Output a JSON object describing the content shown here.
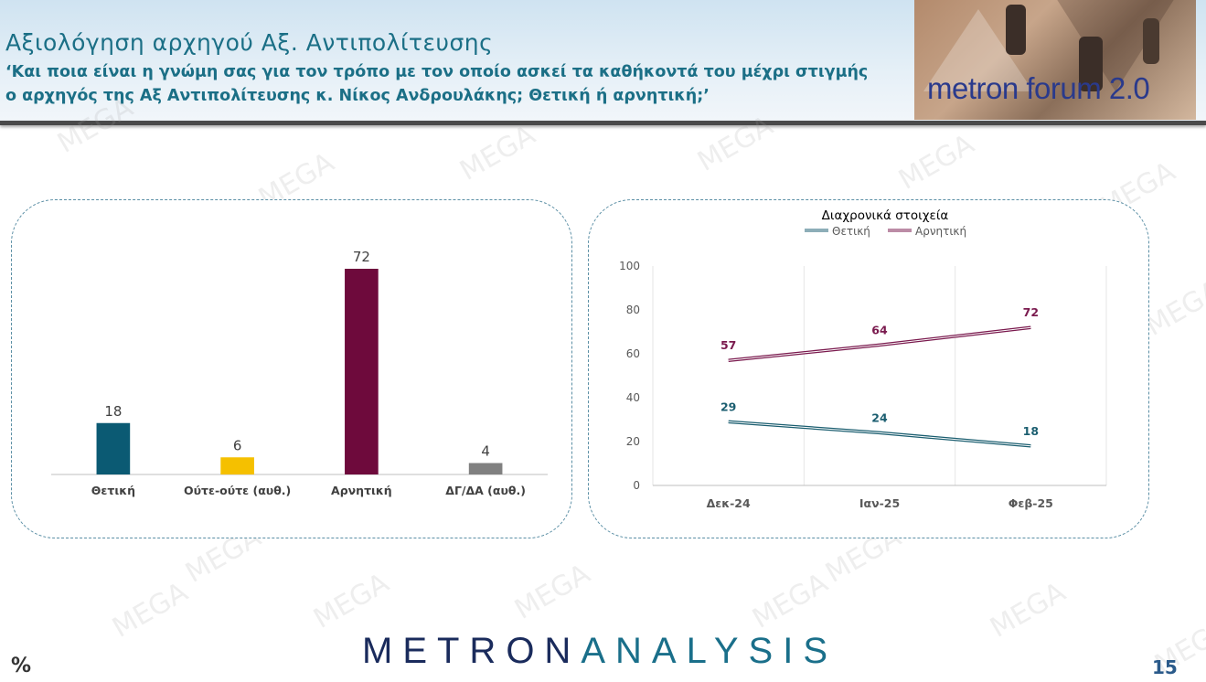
{
  "header": {
    "title": "Αξιολόγηση αρχηγού Αξ. Αντιπολίτευσης",
    "subtitle": "‘Και ποια είναι η γνώμη σας για τον τρόπο με τον οποίο ασκεί τα καθήκοντά του μέχρι στιγμής ο αρχηγός της Αξ Αντιπολίτευσης κ. Νίκος Ανδρουλάκης; Θετική ή αρνητική;’",
    "logo_text": "metron forum 2.0"
  },
  "footer": {
    "logo_part1": "METRON",
    "logo_part2": "ANALYSIS",
    "percent_symbol": "%",
    "page_number": "15"
  },
  "watermark": "MEGA",
  "chart_data": [
    {
      "type": "bar",
      "title": "",
      "categories": [
        "Θετική",
        "Ούτε-ούτε (αυθ.)",
        "Αρνητική",
        "ΔΓ/ΔΑ (αυθ.)"
      ],
      "values": [
        18,
        6,
        72,
        4
      ],
      "colors": [
        "#0b5a73",
        "#f5c000",
        "#6e0a3c",
        "#808080"
      ],
      "ylim": [
        0,
        80
      ]
    },
    {
      "type": "line",
      "title": "Διαχρονικά στοιχεία",
      "x": [
        "Δεκ-24",
        "Ιαν-25",
        "Φεβ-25"
      ],
      "series": [
        {
          "name": "Θετική",
          "values": [
            29,
            24,
            18
          ],
          "color": "#1b5e70"
        },
        {
          "name": "Αρνητική",
          "values": [
            57,
            64,
            72
          ],
          "color": "#7a1a4e"
        }
      ],
      "yticks": [
        0,
        20,
        40,
        60,
        80,
        100
      ],
      "ylim": [
        0,
        100
      ],
      "legend": "top"
    }
  ]
}
